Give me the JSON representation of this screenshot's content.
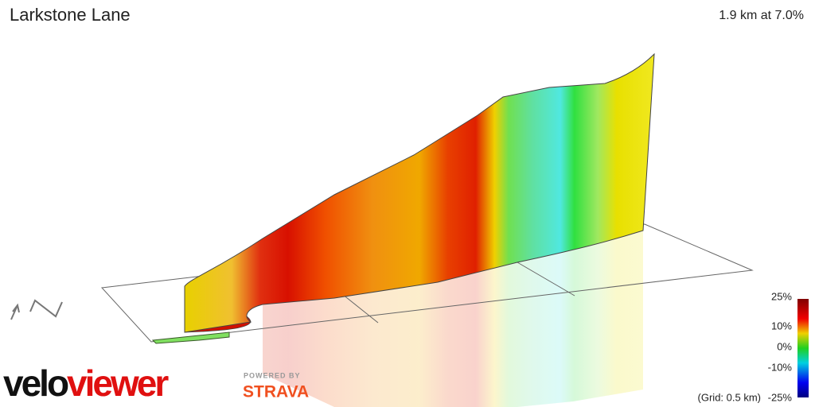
{
  "header": {
    "title": "Larkstone Lane",
    "summary": "1.9 km at 7.0%"
  },
  "legend": {
    "labels": [
      "25%",
      "10%",
      "0%",
      "-10%",
      "-25%"
    ],
    "grid_note": "(Grid: 0.5 km)"
  },
  "compass": {
    "label": "N"
  },
  "branding": {
    "logo": "veloviewer",
    "powered_by": "POWERED BY",
    "partner": "STRAVA"
  }
}
